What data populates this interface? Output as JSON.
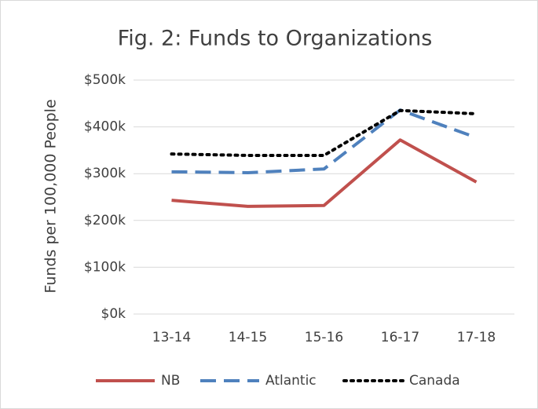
{
  "chart_data": {
    "type": "line",
    "title": "Fig. 2: Funds to Organizations",
    "y_label": "Funds per 100,000 People",
    "categories": [
      "13-14",
      "14-15",
      "15-16",
      "16-17",
      "17-18"
    ],
    "series": [
      {
        "name": "NB",
        "color": "#c0504d",
        "dash": "solid",
        "values": [
          243000,
          230000,
          232000,
          372000,
          282000
        ]
      },
      {
        "name": "Atlantic",
        "color": "#4f81bd",
        "dash": "dashed",
        "values": [
          304000,
          302000,
          310000,
          436000,
          377000
        ]
      },
      {
        "name": "Canada",
        "color": "#000000",
        "dash": "dotted",
        "values": [
          342000,
          339000,
          339000,
          435000,
          428000
        ]
      }
    ],
    "ylim": [
      0,
      500000
    ],
    "yticks": [
      {
        "value": 0,
        "label": "$0k"
      },
      {
        "value": 100000,
        "label": "$100k"
      },
      {
        "value": 200000,
        "label": "$200k"
      },
      {
        "value": 300000,
        "label": "$300k"
      },
      {
        "value": 400000,
        "label": "$400k"
      },
      {
        "value": 500000,
        "label": "$500k"
      }
    ],
    "grid": true,
    "legend": "bottom"
  }
}
